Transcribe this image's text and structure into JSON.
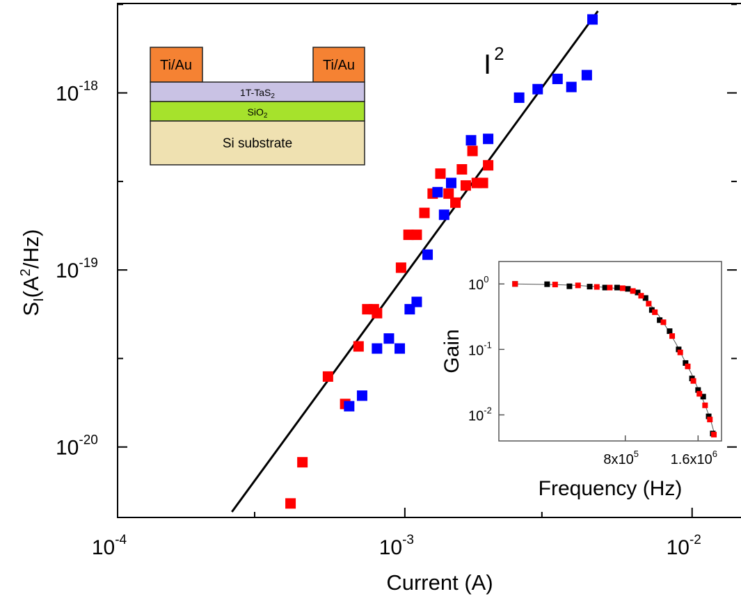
{
  "chart_data": [
    {
      "type": "scatter",
      "xlabel": "Current (A)",
      "ylabel_main": "S",
      "ylabel_sub": "I",
      "ylabel_rest_a": "(A",
      "ylabel_sup": "2",
      "ylabel_rest_b": "/Hz)",
      "x_scale": "log",
      "y_scale": "log",
      "xlim": [
        0.0001,
        0.02
      ],
      "ylim": [
        4e-21,
        3.2e-18
      ],
      "x_ticks": [
        {
          "value": 0.0001,
          "base": "10",
          "exp": "-4"
        },
        {
          "value": 0.001,
          "base": "10",
          "exp": "-3"
        },
        {
          "value": 0.01,
          "base": "10",
          "exp": "-2"
        }
      ],
      "y_ticks": [
        {
          "value": 1e-20,
          "base": "10",
          "exp": "-20"
        },
        {
          "value": 1e-19,
          "base": "10",
          "exp": "-19"
        },
        {
          "value": 1e-18,
          "base": "10",
          "exp": "-18"
        }
      ],
      "annotation": {
        "base": "I",
        "exp": "2"
      },
      "fit_line": {
        "x": [
          0.00025,
          0.0047
        ],
        "y": [
          4.3e-21,
          2.9e-18
        ]
      },
      "series": [
        {
          "color": "#ff0000",
          "points": [
            [
              0.0004,
              4.8e-21
            ],
            [
              0.00044,
              8.2e-21
            ],
            [
              0.00054,
              2.5e-20
            ],
            [
              0.00062,
              1.75e-20
            ],
            [
              0.00069,
              3.7e-20
            ],
            [
              0.00074,
              6e-20
            ],
            [
              0.00078,
              6e-20
            ],
            [
              0.0008,
              5.7e-20
            ],
            [
              0.00097,
              1.03e-19
            ],
            [
              0.00103,
              1.58e-19
            ],
            [
              0.0011,
              1.58e-19
            ],
            [
              0.00117,
              2.1e-19
            ],
            [
              0.00125,
              2.7e-19
            ],
            [
              0.00133,
              3.5e-19
            ],
            [
              0.00142,
              2.7e-19
            ],
            [
              0.0015,
              2.4e-19
            ],
            [
              0.00158,
              3.7e-19
            ],
            [
              0.00163,
              3e-19
            ],
            [
              0.00172,
              4.7e-19
            ],
            [
              0.00178,
              3.1e-19
            ],
            [
              0.00187,
              3.1e-19
            ],
            [
              0.00195,
              3.9e-19
            ]
          ]
        },
        {
          "color": "#0000ff",
          "points": [
            [
              0.00064,
              1.7e-20
            ],
            [
              0.00071,
              1.95e-20
            ],
            [
              0.0008,
              3.6e-20
            ],
            [
              0.00088,
              4.1e-20
            ],
            [
              0.00096,
              3.6e-20
            ],
            [
              0.00104,
              6e-20
            ],
            [
              0.0011,
              6.6e-20
            ],
            [
              0.0012,
              1.22e-19
            ],
            [
              0.0013,
              2.75e-19
            ],
            [
              0.00137,
              2.05e-19
            ],
            [
              0.00145,
              3.1e-19
            ],
            [
              0.0017,
              5.4e-19
            ],
            [
              0.00195,
              5.5e-19
            ],
            [
              0.0025,
              9.4e-19
            ],
            [
              0.0029,
              1.05e-18
            ],
            [
              0.0034,
              1.2e-18
            ],
            [
              0.0038,
              1.08e-18
            ],
            [
              0.0043,
              1.26e-18
            ],
            [
              0.0045,
              2.6e-18
            ]
          ]
        }
      ]
    },
    {
      "type": "scatter",
      "xlabel": "Frequency (Hz)",
      "ylabel": "Gain",
      "x_scale": "log",
      "y_scale": "log",
      "xlim": [
        240000,
        2000000
      ],
      "ylim": [
        0.004,
        2.2
      ],
      "x_tick_labels": [
        {
          "value": 800000,
          "label": "8x10",
          "exp": "5"
        },
        {
          "value": 1600000,
          "label": "1.6x10",
          "exp": "6"
        }
      ],
      "y_ticks": [
        {
          "value": 0.01,
          "base": "10",
          "exp": "-2"
        },
        {
          "value": 0.1,
          "base": "10",
          "exp": "-1"
        },
        {
          "value": 1,
          "base": "10",
          "exp": "0"
        }
      ],
      "series": [
        {
          "color": "#000000",
          "points": [
            [
              280000,
              1.0
            ],
            [
              380000,
              0.99
            ],
            [
              470000,
              0.92
            ],
            [
              570000,
              0.91
            ],
            [
              660000,
              0.88
            ],
            [
              740000,
              0.88
            ],
            [
              820000,
              0.84
            ],
            [
              900000,
              0.74
            ],
            [
              970000,
              0.61
            ],
            [
              1030000,
              0.4
            ],
            [
              1110000,
              0.28
            ],
            [
              1220000,
              0.19
            ],
            [
              1330000,
              0.1
            ],
            [
              1420000,
              0.062
            ],
            [
              1510000,
              0.036
            ],
            [
              1600000,
              0.024
            ],
            [
              1680000,
              0.019
            ],
            [
              1770000,
              0.0095
            ],
            [
              1840000,
              0.0052
            ]
          ]
        },
        {
          "color": "#ff0000",
          "points": [
            [
              280000,
              1.0
            ],
            [
              410000,
              0.98
            ],
            [
              510000,
              0.95
            ],
            [
              610000,
              0.9
            ],
            [
              690000,
              0.88
            ],
            [
              780000,
              0.86
            ],
            [
              860000,
              0.78
            ],
            [
              930000,
              0.66
            ],
            [
              1000000,
              0.5
            ],
            [
              1060000,
              0.37
            ],
            [
              1150000,
              0.26
            ],
            [
              1250000,
              0.16
            ],
            [
              1350000,
              0.09
            ],
            [
              1450000,
              0.055
            ],
            [
              1530000,
              0.033
            ],
            [
              1620000,
              0.021
            ],
            [
              1710000,
              0.014
            ],
            [
              1790000,
              0.0085
            ],
            [
              1860000,
              0.005
            ]
          ]
        }
      ],
      "fit_curve": {
        "x": [
          280000,
          400000,
          500000,
          600000,
          700000,
          800000,
          900000,
          1000000,
          1100000,
          1200000,
          1300000,
          1400000,
          1500000,
          1600000,
          1700000,
          1800000,
          1880000
        ],
        "y": [
          1.0,
          0.98,
          0.95,
          0.91,
          0.87,
          0.82,
          0.71,
          0.52,
          0.33,
          0.2,
          0.12,
          0.07,
          0.043,
          0.025,
          0.015,
          0.0085,
          0.0048
        ]
      }
    }
  ],
  "device_schematic": {
    "contact_left": "Ti/Au",
    "contact_right": "Ti/Au",
    "layer_top": {
      "main": "1T-TaS",
      "sub": "2"
    },
    "layer_mid": {
      "main": "SiO",
      "sub": "2"
    },
    "layer_bottom": "Si substrate",
    "colors": {
      "contact": "#f58233",
      "tas2": "#c9c2e4",
      "sio2": "#a6e22c",
      "si": "#efe1b1"
    }
  }
}
